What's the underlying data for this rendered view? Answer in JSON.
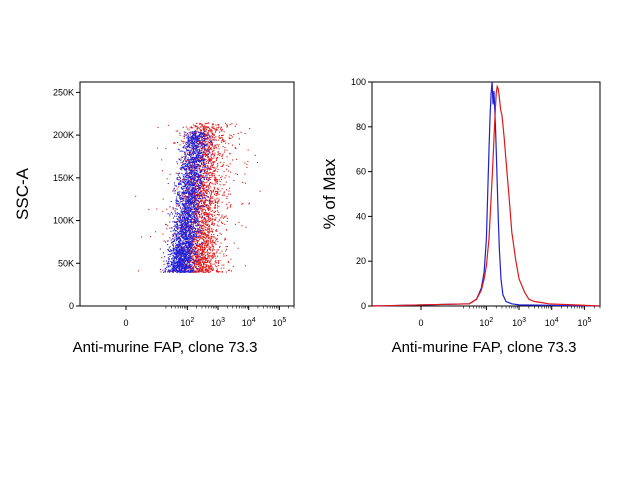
{
  "colors": {
    "blue": "#1f1fd6",
    "red": "#e01818",
    "axis": "#000000"
  },
  "chart_data": [
    {
      "type": "scatter",
      "xlabel": "Anti-murine FAP, clone 73.3",
      "ylabel": "SSC-A",
      "xscale": "biexponential",
      "xlim": [
        -15,
        300000
      ],
      "ylim": [
        0,
        262144
      ],
      "x_ticks": [
        {
          "value": 0,
          "label": "0",
          "exp": ""
        },
        {
          "value": 100,
          "label": "10",
          "exp": "2"
        },
        {
          "value": 1000,
          "label": "10",
          "exp": "3"
        },
        {
          "value": 10000,
          "label": "10",
          "exp": "4"
        },
        {
          "value": 100000,
          "label": "10",
          "exp": "5"
        }
      ],
      "y_ticks": [
        {
          "value": 0,
          "label": "0"
        },
        {
          "value": 50000,
          "label": "50K"
        },
        {
          "value": 100000,
          "label": "100K"
        },
        {
          "value": 150000,
          "label": "150K"
        },
        {
          "value": 200000,
          "label": "200K"
        },
        {
          "value": 250000,
          "label": "250K"
        }
      ],
      "series": [
        {
          "color": "#e01818",
          "center_log10_x": 2.42,
          "spread_log10_x": 0.34,
          "slope_log10_per_100k": 0.18,
          "y_range": [
            40000,
            215000
          ],
          "density": "high"
        },
        {
          "color": "#1f1fd6",
          "center_log10_x": 1.95,
          "spread_log10_x": 0.22,
          "slope_log10_per_100k": 0.32,
          "y_range": [
            40000,
            205000
          ],
          "density": "high"
        }
      ]
    },
    {
      "type": "line",
      "xlabel": "Anti-murine FAP, clone 73.3",
      "ylabel": "% of Max",
      "xscale": "biexponential",
      "xlim": [
        -15,
        300000
      ],
      "ylim": [
        0,
        100
      ],
      "x_ticks": [
        {
          "value": 0,
          "label": "0",
          "exp": ""
        },
        {
          "value": 100,
          "label": "10",
          "exp": "2"
        },
        {
          "value": 1000,
          "label": "10",
          "exp": "3"
        },
        {
          "value": 10000,
          "label": "10",
          "exp": "4"
        },
        {
          "value": 100000,
          "label": "10",
          "exp": "5"
        }
      ],
      "y_ticks": [
        {
          "value": 0,
          "label": "0"
        },
        {
          "value": 20,
          "label": "20"
        },
        {
          "value": 40,
          "label": "40"
        },
        {
          "value": 60,
          "label": "60"
        },
        {
          "value": 80,
          "label": "80"
        },
        {
          "value": 100,
          "label": "100"
        }
      ],
      "series": [
        {
          "color": "#1f1fd6",
          "x": [
            -15,
            30,
            50,
            70,
            85,
            100,
            110,
            120,
            130,
            140,
            150,
            160,
            170,
            180,
            190,
            200,
            215,
            230,
            250,
            280,
            320,
            400,
            600,
            1000,
            10000,
            300000
          ],
          "y": [
            0,
            1,
            3,
            8,
            15,
            30,
            50,
            70,
            85,
            95,
            100,
            90,
            96,
            88,
            80,
            70,
            55,
            40,
            25,
            12,
            5,
            2,
            1,
            0.5,
            0.3,
            0
          ]
        },
        {
          "color": "#e01818",
          "x": [
            -15,
            30,
            50,
            70,
            85,
            100,
            120,
            140,
            160,
            180,
            200,
            215,
            230,
            250,
            270,
            300,
            350,
            400,
            500,
            600,
            800,
            1000,
            1500,
            2000,
            3000,
            5000,
            8000,
            15000,
            50000,
            300000
          ],
          "y": [
            0,
            1,
            3,
            7,
            12,
            18,
            30,
            48,
            65,
            82,
            95,
            98,
            97,
            93,
            88,
            85,
            75,
            65,
            48,
            33,
            20,
            12,
            6,
            3,
            2,
            1.5,
            1,
            0.8,
            0.5,
            0
          ]
        }
      ]
    }
  ]
}
